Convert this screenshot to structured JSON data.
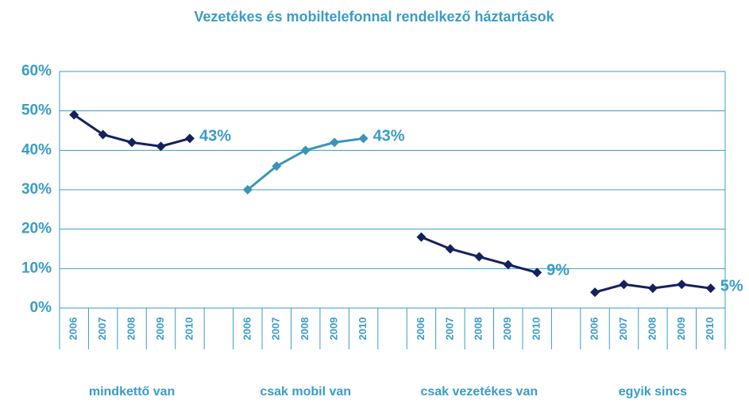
{
  "chart_data": {
    "type": "line",
    "title": "Vezetékes és mobiltelefonnal rendelkező háztartások",
    "categories": [
      "2006",
      "2007",
      "2008",
      "2009",
      "2010",
      null,
      "2006",
      "2007",
      "2008",
      "2009",
      "2010",
      null,
      "2006",
      "2007",
      "2008",
      "2009",
      "2010",
      null,
      "2006",
      "2007",
      "2008",
      "2009",
      "2010"
    ],
    "groups": [
      "mindkettő van",
      "csak mobil van",
      "csak vezetékes van",
      "egyik sincs"
    ],
    "series": [
      {
        "color": "#14215e",
        "values": [
          49,
          44,
          42,
          41,
          43,
          null,
          null,
          null,
          null,
          null,
          null,
          null,
          null,
          null,
          null,
          null,
          null,
          null,
          null,
          null,
          null,
          null,
          null
        ],
        "value_labels": [
          null,
          null,
          null,
          null,
          "43%",
          null,
          null,
          null,
          null,
          null,
          null,
          null,
          null,
          null,
          null,
          null,
          null,
          null,
          null,
          null,
          null,
          null,
          null
        ]
      },
      {
        "color": "#3a95b8",
        "values": [
          null,
          null,
          null,
          null,
          null,
          null,
          30,
          36,
          40,
          42,
          43,
          null,
          null,
          null,
          null,
          null,
          null,
          null,
          null,
          null,
          null,
          null,
          null
        ],
        "value_labels": [
          null,
          null,
          null,
          null,
          null,
          null,
          null,
          null,
          null,
          null,
          "43%",
          null,
          null,
          null,
          null,
          null,
          null,
          null,
          null,
          null,
          null,
          null,
          null
        ]
      },
      {
        "color": "#14215e",
        "values": [
          null,
          null,
          null,
          null,
          null,
          null,
          null,
          null,
          null,
          null,
          null,
          null,
          18,
          15,
          13,
          11,
          9,
          null,
          null,
          null,
          null,
          null,
          null
        ],
        "value_labels": [
          null,
          null,
          null,
          null,
          null,
          null,
          null,
          null,
          null,
          null,
          null,
          null,
          null,
          null,
          null,
          null,
          "9%",
          null,
          null,
          null,
          null,
          null,
          null
        ]
      },
      {
        "color": "#14215e",
        "values": [
          null,
          null,
          null,
          null,
          null,
          null,
          null,
          null,
          null,
          null,
          null,
          null,
          null,
          null,
          null,
          null,
          null,
          null,
          4,
          6,
          5,
          6,
          5
        ],
        "value_labels": [
          null,
          null,
          null,
          null,
          null,
          null,
          null,
          null,
          null,
          null,
          null,
          null,
          null,
          null,
          null,
          null,
          null,
          null,
          null,
          null,
          null,
          null,
          "5%"
        ]
      }
    ],
    "ylim": [
      0,
      60
    ],
    "yticks": [
      {
        "value": 0,
        "label": "0%"
      },
      {
        "value": 10,
        "label": "10%"
      },
      {
        "value": 20,
        "label": "20%"
      },
      {
        "value": 30,
        "label": "30%"
      },
      {
        "value": 40,
        "label": "40%"
      },
      {
        "value": 50,
        "label": "50%"
      },
      {
        "value": 60,
        "label": "60%"
      }
    ],
    "grid": true
  }
}
